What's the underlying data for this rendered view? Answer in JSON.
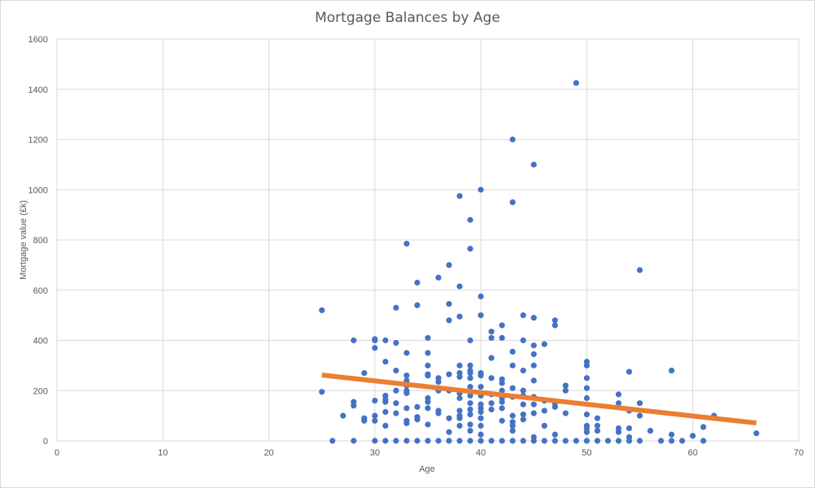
{
  "chart_data": {
    "type": "scatter",
    "title": "Mortgage Balances by Age",
    "xlabel": "Age",
    "ylabel": "Mortgage value (£k)",
    "xlim": [
      0,
      70
    ],
    "ylim": [
      0,
      1600
    ],
    "x_ticks": [
      0,
      10,
      20,
      30,
      40,
      50,
      60,
      70
    ],
    "y_ticks": [
      0,
      200,
      400,
      600,
      800,
      1000,
      1200,
      1400,
      1600
    ],
    "grid": true,
    "legend": "none",
    "series": [
      {
        "marker_color": "#4472C4",
        "points": [
          [
            25,
            520
          ],
          [
            25,
            195
          ],
          [
            26,
            0
          ],
          [
            27,
            100
          ],
          [
            28,
            400
          ],
          [
            28,
            155
          ],
          [
            28,
            140
          ],
          [
            28,
            0
          ],
          [
            29,
            270
          ],
          [
            29,
            90
          ],
          [
            29,
            80
          ],
          [
            30,
            405
          ],
          [
            30,
            400
          ],
          [
            30,
            370
          ],
          [
            30,
            160
          ],
          [
            30,
            100
          ],
          [
            30,
            80
          ],
          [
            30,
            0
          ],
          [
            31,
            400
          ],
          [
            31,
            315
          ],
          [
            31,
            180
          ],
          [
            31,
            165
          ],
          [
            31,
            155
          ],
          [
            31,
            115
          ],
          [
            31,
            60
          ],
          [
            31,
            0
          ],
          [
            32,
            530
          ],
          [
            32,
            390
          ],
          [
            32,
            280
          ],
          [
            32,
            200
          ],
          [
            32,
            150
          ],
          [
            32,
            110
          ],
          [
            32,
            0
          ],
          [
            33,
            785
          ],
          [
            33,
            350
          ],
          [
            33,
            260
          ],
          [
            33,
            240
          ],
          [
            33,
            220
          ],
          [
            33,
            200
          ],
          [
            33,
            190
          ],
          [
            33,
            130
          ],
          [
            33,
            80
          ],
          [
            33,
            70
          ],
          [
            33,
            0
          ],
          [
            34,
            630
          ],
          [
            34,
            540
          ],
          [
            34,
            135
          ],
          [
            34,
            95
          ],
          [
            34,
            85
          ],
          [
            34,
            0
          ],
          [
            35,
            410
          ],
          [
            35,
            350
          ],
          [
            35,
            300
          ],
          [
            35,
            265
          ],
          [
            35,
            260
          ],
          [
            35,
            170
          ],
          [
            35,
            155
          ],
          [
            35,
            130
          ],
          [
            35,
            65
          ],
          [
            35,
            0
          ],
          [
            36,
            650
          ],
          [
            36,
            250
          ],
          [
            36,
            235
          ],
          [
            36,
            210
          ],
          [
            36,
            200
          ],
          [
            36,
            120
          ],
          [
            36,
            110
          ],
          [
            36,
            0
          ],
          [
            37,
            700
          ],
          [
            37,
            545
          ],
          [
            37,
            480
          ],
          [
            37,
            265
          ],
          [
            37,
            200
          ],
          [
            37,
            90
          ],
          [
            37,
            35
          ],
          [
            37,
            0
          ],
          [
            38,
            975
          ],
          [
            38,
            615
          ],
          [
            38,
            495
          ],
          [
            38,
            300
          ],
          [
            38,
            270
          ],
          [
            38,
            255
          ],
          [
            38,
            190
          ],
          [
            38,
            170
          ],
          [
            38,
            120
          ],
          [
            38,
            100
          ],
          [
            38,
            90
          ],
          [
            38,
            60
          ],
          [
            38,
            0
          ],
          [
            39,
            880
          ],
          [
            39,
            765
          ],
          [
            39,
            400
          ],
          [
            39,
            300
          ],
          [
            39,
            280
          ],
          [
            39,
            270
          ],
          [
            39,
            250
          ],
          [
            39,
            215
          ],
          [
            39,
            180
          ],
          [
            39,
            150
          ],
          [
            39,
            125
          ],
          [
            39,
            105
          ],
          [
            39,
            65
          ],
          [
            39,
            40
          ],
          [
            39,
            0
          ],
          [
            40,
            1000
          ],
          [
            40,
            575
          ],
          [
            40,
            500
          ],
          [
            40,
            270
          ],
          [
            40,
            260
          ],
          [
            40,
            215
          ],
          [
            40,
            180
          ],
          [
            40,
            145
          ],
          [
            40,
            130
          ],
          [
            40,
            115
          ],
          [
            40,
            90
          ],
          [
            40,
            60
          ],
          [
            40,
            25
          ],
          [
            40,
            0
          ],
          [
            41,
            435
          ],
          [
            41,
            410
          ],
          [
            41,
            330
          ],
          [
            41,
            250
          ],
          [
            41,
            185
          ],
          [
            41,
            150
          ],
          [
            41,
            125
          ],
          [
            41,
            0
          ],
          [
            42,
            460
          ],
          [
            42,
            410
          ],
          [
            42,
            245
          ],
          [
            42,
            230
          ],
          [
            42,
            200
          ],
          [
            42,
            170
          ],
          [
            42,
            155
          ],
          [
            42,
            130
          ],
          [
            42,
            80
          ],
          [
            42,
            0
          ],
          [
            43,
            1200
          ],
          [
            43,
            950
          ],
          [
            43,
            355
          ],
          [
            43,
            300
          ],
          [
            43,
            210
          ],
          [
            43,
            175
          ],
          [
            43,
            100
          ],
          [
            43,
            75
          ],
          [
            43,
            60
          ],
          [
            43,
            40
          ],
          [
            43,
            0
          ],
          [
            44,
            500
          ],
          [
            44,
            400
          ],
          [
            44,
            280
          ],
          [
            44,
            200
          ],
          [
            44,
            180
          ],
          [
            44,
            145
          ],
          [
            44,
            105
          ],
          [
            44,
            85
          ],
          [
            44,
            0
          ],
          [
            45,
            1100
          ],
          [
            45,
            490
          ],
          [
            45,
            380
          ],
          [
            45,
            345
          ],
          [
            45,
            300
          ],
          [
            45,
            240
          ],
          [
            45,
            175
          ],
          [
            45,
            145
          ],
          [
            45,
            110
          ],
          [
            45,
            15
          ],
          [
            45,
            0
          ],
          [
            46,
            385
          ],
          [
            46,
            160
          ],
          [
            46,
            120
          ],
          [
            46,
            60
          ],
          [
            46,
            0
          ],
          [
            47,
            480
          ],
          [
            47,
            460
          ],
          [
            47,
            150
          ],
          [
            47,
            135
          ],
          [
            47,
            25
          ],
          [
            47,
            0
          ],
          [
            48,
            220
          ],
          [
            48,
            200
          ],
          [
            48,
            110
          ],
          [
            48,
            0
          ],
          [
            49,
            1425
          ],
          [
            49,
            0
          ],
          [
            50,
            315
          ],
          [
            50,
            300
          ],
          [
            50,
            250
          ],
          [
            50,
            210
          ],
          [
            50,
            170
          ],
          [
            50,
            105
          ],
          [
            50,
            60
          ],
          [
            50,
            50
          ],
          [
            50,
            35
          ],
          [
            50,
            0
          ],
          [
            51,
            90
          ],
          [
            51,
            60
          ],
          [
            51,
            40
          ],
          [
            51,
            0
          ],
          [
            52,
            0
          ],
          [
            53,
            185
          ],
          [
            53,
            150
          ],
          [
            53,
            50
          ],
          [
            53,
            35
          ],
          [
            53,
            0
          ],
          [
            54,
            275
          ],
          [
            54,
            120
          ],
          [
            54,
            50
          ],
          [
            54,
            15
          ],
          [
            54,
            0
          ],
          [
            55,
            680
          ],
          [
            55,
            150
          ],
          [
            55,
            100
          ],
          [
            55,
            0
          ],
          [
            56,
            40
          ],
          [
            57,
            0
          ],
          [
            58,
            280
          ],
          [
            58,
            25
          ],
          [
            58,
            0
          ],
          [
            59,
            0
          ],
          [
            60,
            20
          ],
          [
            61,
            55
          ],
          [
            61,
            0
          ],
          [
            62,
            100
          ],
          [
            66,
            30
          ]
        ]
      }
    ],
    "trendline": {
      "x": [
        25,
        66
      ],
      "y": [
        262,
        71
      ],
      "color": "#ED7D31"
    }
  }
}
